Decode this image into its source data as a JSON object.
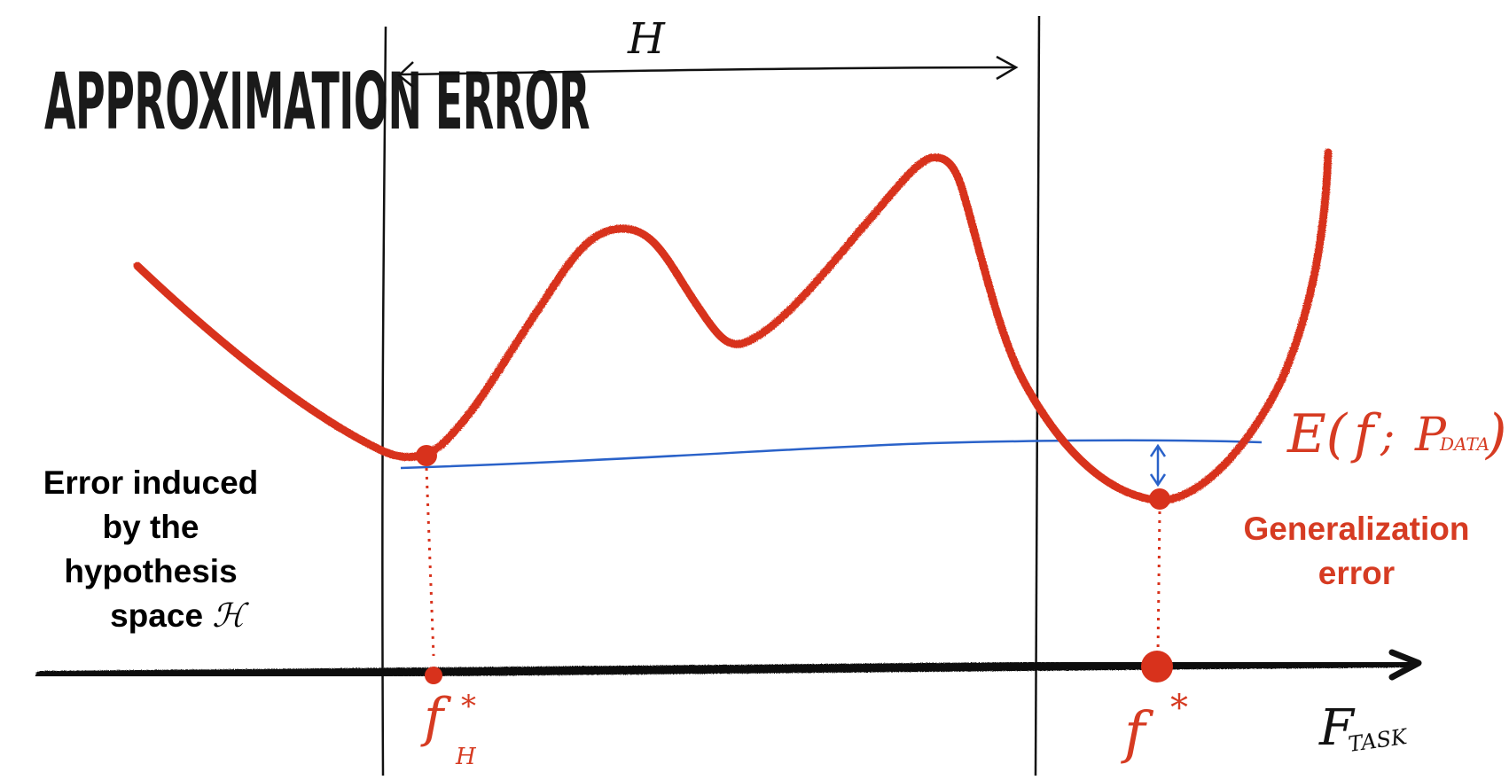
{
  "title": "APPROXIMATION ERROR",
  "hypothesis_label": "H",
  "axis_label": {
    "main": "F",
    "subscript": "TASK"
  },
  "function_label": {
    "main": "E(",
    "f": "f",
    "sep": " ; ",
    "p": "P",
    "subscript": "DATA",
    "close": ")"
  },
  "f_star_h": {
    "main": "f",
    "superscript": "*",
    "subscript": "H"
  },
  "f_star": {
    "main": "f",
    "superscript": "*"
  },
  "left_caption": {
    "line1": "Error induced",
    "line2": "by the",
    "line3": "hypothesis",
    "line4": "space",
    "symbol": "ℋ"
  },
  "right_caption": {
    "line1": "Generalization",
    "line2": "error"
  },
  "colors": {
    "curve": "#d8321c",
    "baseline": "#2a62c9",
    "ink": "#111111",
    "label_red": "#d63b22"
  }
}
